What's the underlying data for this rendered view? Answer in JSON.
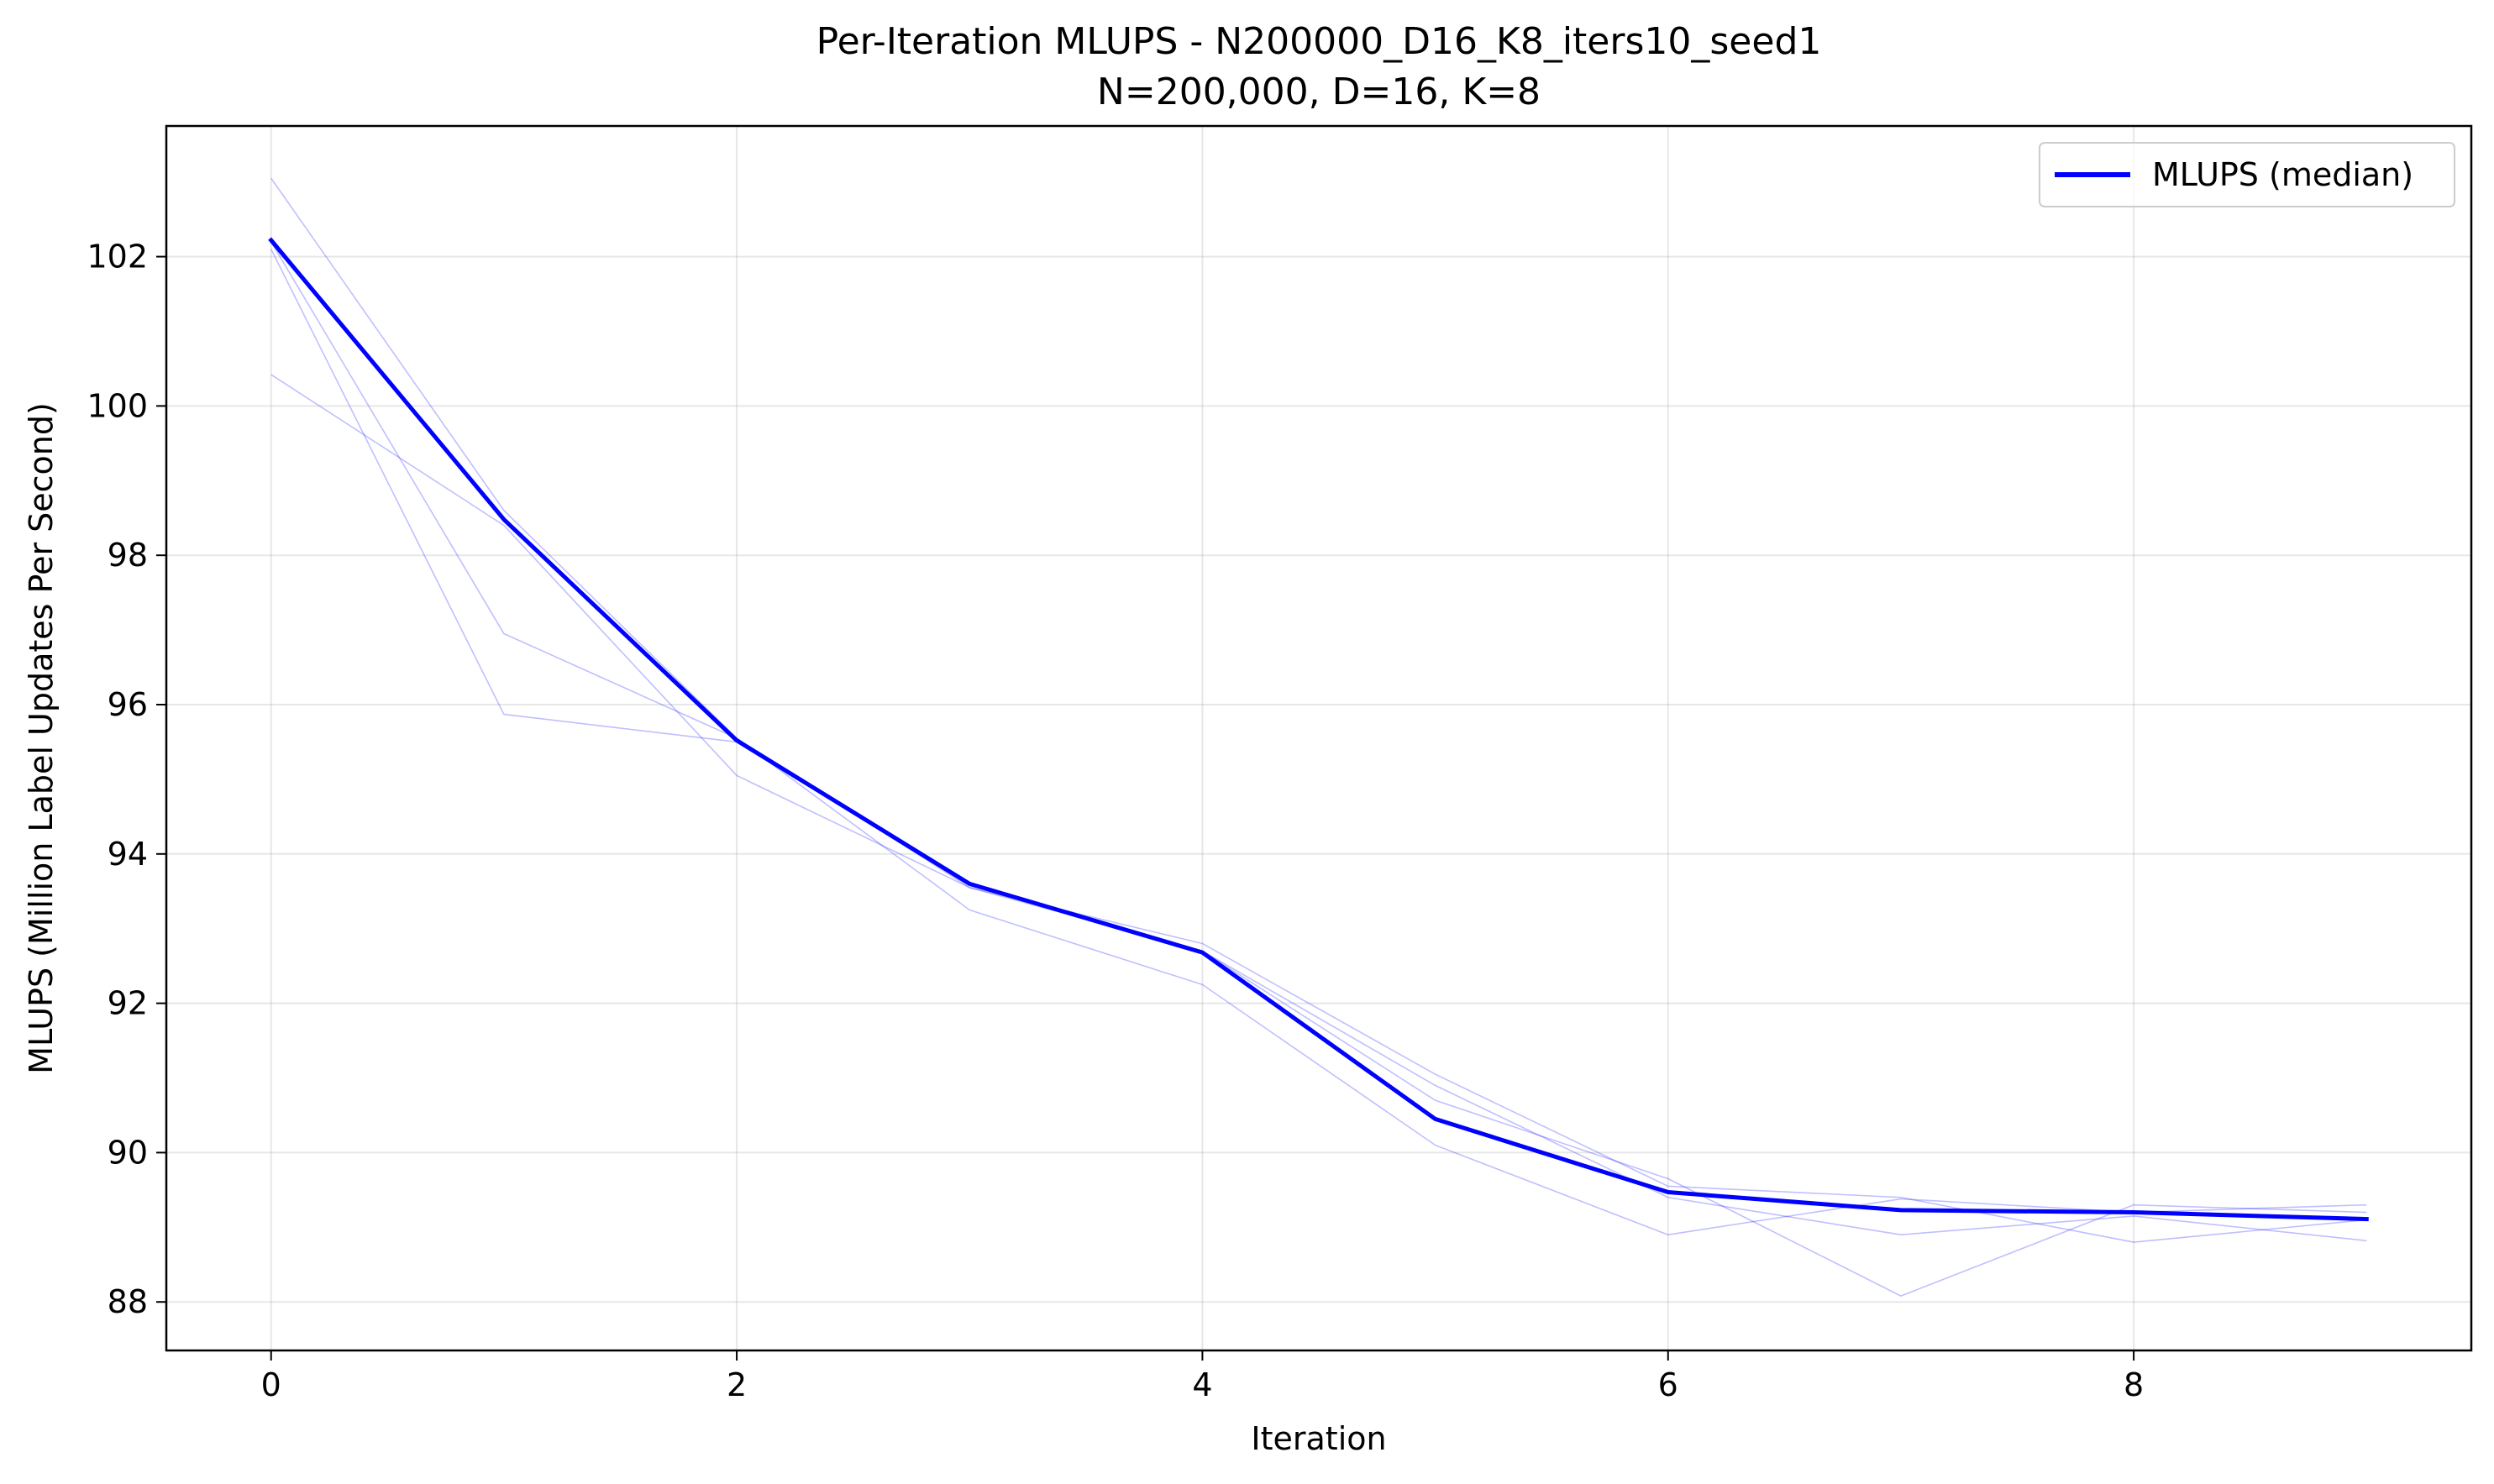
{
  "chart_data": {
    "type": "line",
    "title": "Per-Iteration MLUPS - N200000_D16_K8_iters10_seed1",
    "subtitle": "N=200,000, D=16, K=8",
    "xlabel": "Iteration",
    "ylabel": "MLUPS (Million Label Updates Per Second)",
    "xlim": [
      -0.45,
      9.45
    ],
    "ylim": [
      87.35,
      103.75
    ],
    "xticks": [
      0,
      2,
      4,
      6,
      8
    ],
    "yticks": [
      88,
      90,
      92,
      94,
      96,
      98,
      100,
      102
    ],
    "grid": true,
    "legend_position": "top-right",
    "x": [
      0,
      1,
      2,
      3,
      4,
      5,
      6,
      7,
      8,
      9
    ],
    "series": [
      {
        "name": "MLUPS (median)",
        "color": "#0000ff",
        "values": [
          102.22,
          98.48,
          95.52,
          93.6,
          92.68,
          90.45,
          89.47,
          89.23,
          89.2,
          89.11
        ]
      }
    ],
    "background_runs": {
      "color": "#0000ff",
      "runs": [
        [
          103.05,
          98.6,
          95.55,
          93.55,
          92.8,
          91.05,
          89.55,
          89.4,
          88.8,
          89.1
        ],
        [
          102.2,
          96.95,
          95.55,
          93.25,
          92.25,
          90.1,
          88.9,
          89.38,
          89.2,
          89.3
        ],
        [
          100.42,
          98.4,
          95.05,
          93.55,
          92.7,
          90.7,
          89.65,
          88.08,
          89.3,
          89.2
        ],
        [
          102.1,
          95.87,
          95.5,
          93.58,
          92.7,
          90.9,
          89.4,
          88.9,
          89.15,
          88.82
        ]
      ]
    }
  }
}
